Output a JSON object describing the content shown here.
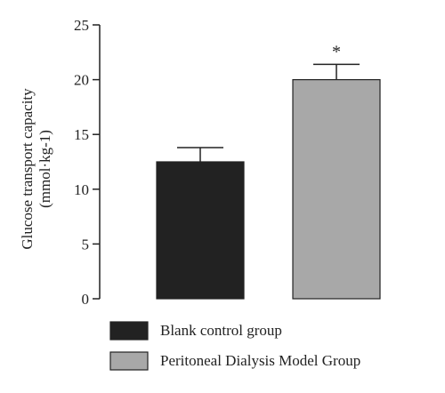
{
  "chart_data": {
    "type": "bar",
    "ylabel_line1": "Glucose transport capacity",
    "ylabel_line2": "(mmol·kg-1)",
    "xlabel": "",
    "ylim": [
      0,
      25
    ],
    "yticks": [
      0,
      5,
      10,
      15,
      20,
      25
    ],
    "categories": [
      "Blank control group",
      "Peritoneal Dialysis Model Group"
    ],
    "values": [
      12.5,
      20.0
    ],
    "errors": [
      1.3,
      1.4
    ],
    "annotations": [
      "",
      "*"
    ],
    "colors": [
      "#222222",
      "#a8a8a8"
    ],
    "legend": {
      "position": "bottom",
      "entries": [
        "Blank control group",
        "Peritoneal Dialysis Model Group"
      ]
    },
    "grid": false
  }
}
